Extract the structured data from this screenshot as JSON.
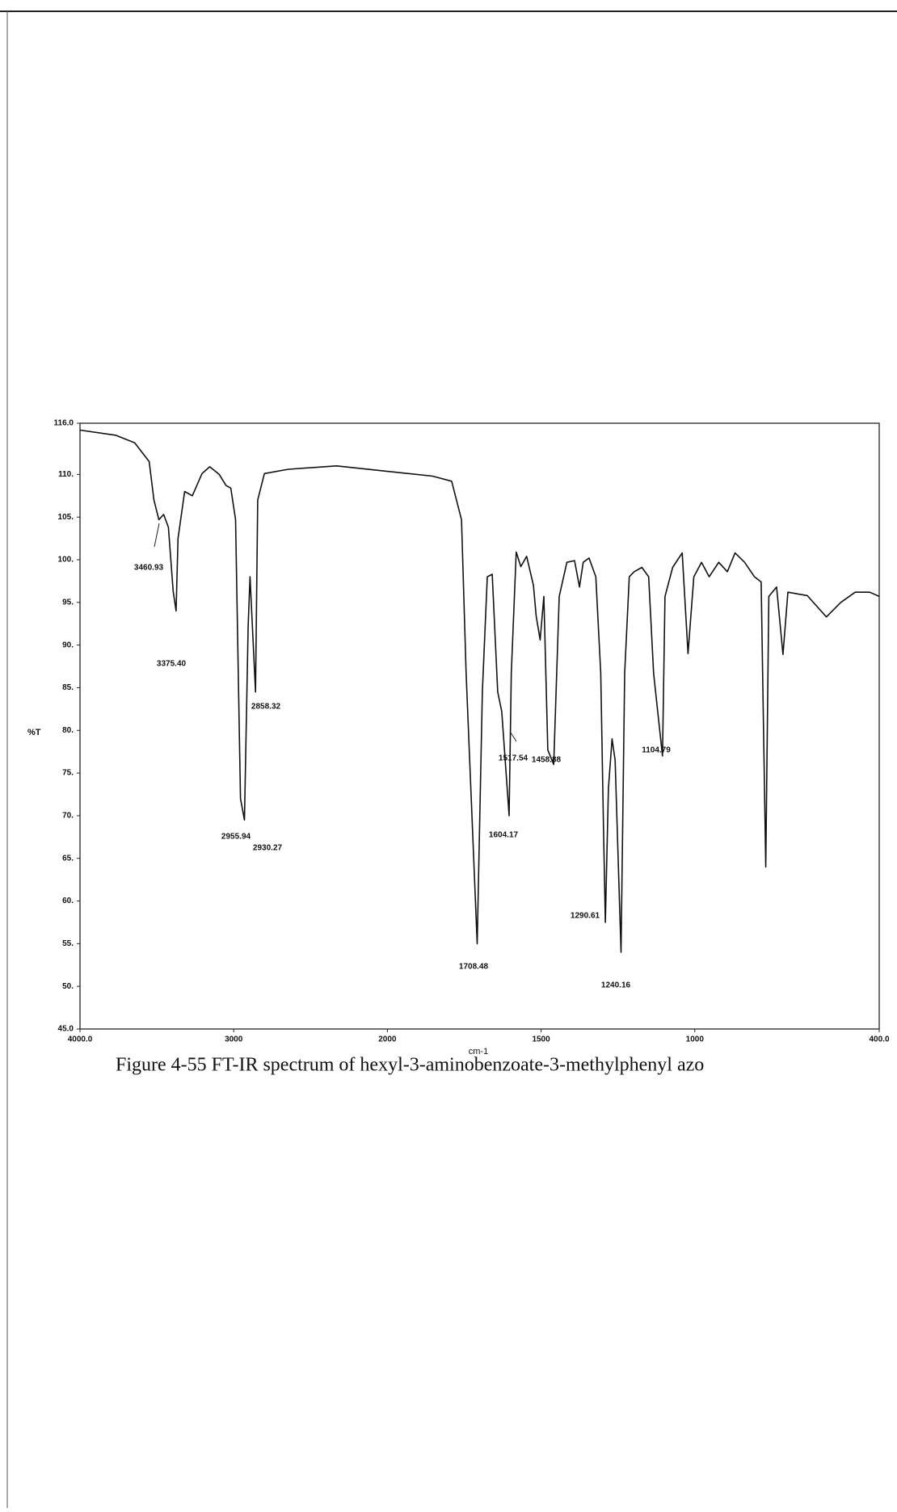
{
  "chart_data": {
    "type": "line",
    "title": "Figure 4-55 FT-IR spectrum of hexyl-3-aminobenzoate-3-methylphenyl azo",
    "x_label": "cm-1",
    "y_label": "%T",
    "color": "#111111",
    "grid": false,
    "xlim": [
      4000,
      400
    ],
    "x_scale_change": 2000,
    "ylim": [
      45,
      116
    ],
    "xticks": [
      {
        "value": 4000,
        "label": "4000.0"
      },
      3000,
      2000,
      1500,
      1000,
      {
        "value": 400,
        "label": "400.0"
      }
    ],
    "yticks": [
      {
        "value": 116,
        "label": "116.0"
      },
      {
        "value": 110,
        "label": "110."
      },
      {
        "value": 105,
        "label": "105."
      },
      {
        "value": 100,
        "label": "100."
      },
      {
        "value": 95,
        "label": "95."
      },
      {
        "value": 90,
        "label": "90."
      },
      {
        "value": 85,
        "label": "85."
      },
      {
        "value": 80,
        "label": "80."
      },
      {
        "value": 75,
        "label": "75."
      },
      {
        "value": 70,
        "label": "70."
      },
      {
        "value": 65,
        "label": "65."
      },
      {
        "value": 60,
        "label": "60."
      },
      {
        "value": 55,
        "label": "55."
      },
      {
        "value": 50,
        "label": "50."
      },
      {
        "value": 45,
        "label": "45.0"
      }
    ],
    "x": [
      4000,
      3769,
      3644,
      3550,
      3519,
      3487,
      3456,
      3425,
      3394,
      3375,
      3362,
      3319,
      3269,
      3206,
      3156,
      3094,
      3050,
      3019,
      2988,
      2956,
      2930,
      2906,
      2894,
      2858,
      2844,
      2800,
      2644,
      2331,
      2019,
      1853,
      1791,
      1759,
      1744,
      1708,
      1691,
      1675,
      1659,
      1641,
      1628,
      1604,
      1597,
      1581,
      1566,
      1547,
      1525,
      1516,
      1503,
      1491,
      1478,
      1459,
      1441,
      1416,
      1391,
      1375,
      1363,
      1344,
      1322,
      1306,
      1297,
      1291,
      1281,
      1269,
      1259,
      1240,
      1228,
      1213,
      1197,
      1172,
      1150,
      1134,
      1105,
      1097,
      1072,
      1041,
      1022,
      1003,
      978,
      953,
      922,
      894,
      869,
      838,
      806,
      784,
      769,
      759,
      734,
      713,
      697,
      634,
      572,
      525,
      478,
      431,
      400
    ],
    "values": [
      115.2,
      114.6,
      113.7,
      111.5,
      107,
      104.7,
      105.3,
      103.8,
      96.3,
      94,
      102.5,
      108,
      107.5,
      110.1,
      110.9,
      110,
      108.7,
      108.4,
      104.7,
      72,
      69.5,
      92.3,
      98,
      84.5,
      107,
      110.1,
      110.6,
      111,
      110.4,
      109.8,
      109.2,
      104.7,
      86.7,
      55,
      84.5,
      98,
      98.3,
      84.5,
      82.2,
      70,
      86.7,
      100.9,
      99.2,
      100.4,
      97,
      93.4,
      90.6,
      95.7,
      77.7,
      76,
      95.7,
      99.7,
      99.9,
      96.8,
      99.7,
      100.2,
      98,
      86.7,
      68.6,
      57.5,
      73.2,
      79,
      76.5,
      54,
      86.7,
      98,
      98.6,
      99.1,
      98,
      86.7,
      77,
      95.7,
      99.1,
      100.8,
      89,
      98,
      99.7,
      98,
      99.7,
      98.6,
      100.8,
      99.7,
      98,
      97.4,
      64,
      95.7,
      96.8,
      88.9,
      96.2,
      95.8,
      93.3,
      95,
      96.2,
      96.2,
      95.7
    ],
    "annotations": [
      {
        "value": 3460.93,
        "label": "3460.93"
      },
      {
        "value": 3375.4,
        "label": "3375.40"
      },
      {
        "value": 2955.94,
        "label": "2955.94"
      },
      {
        "value": 2930.27,
        "label": "2930.27"
      },
      {
        "value": 2858.32,
        "label": "2858.32"
      },
      {
        "value": 1708.48,
        "label": "1708.48"
      },
      {
        "value": 1604.17,
        "label": "1604.17"
      },
      {
        "value": 1517.54,
        "label": "1517.54"
      },
      {
        "value": 1458.88,
        "label": "1458.88"
      },
      {
        "value": 1290.61,
        "label": "1290.61"
      },
      {
        "value": 1240.16,
        "label": "1240.16"
      },
      {
        "value": 1104.79,
        "label": "1104.79"
      }
    ]
  }
}
